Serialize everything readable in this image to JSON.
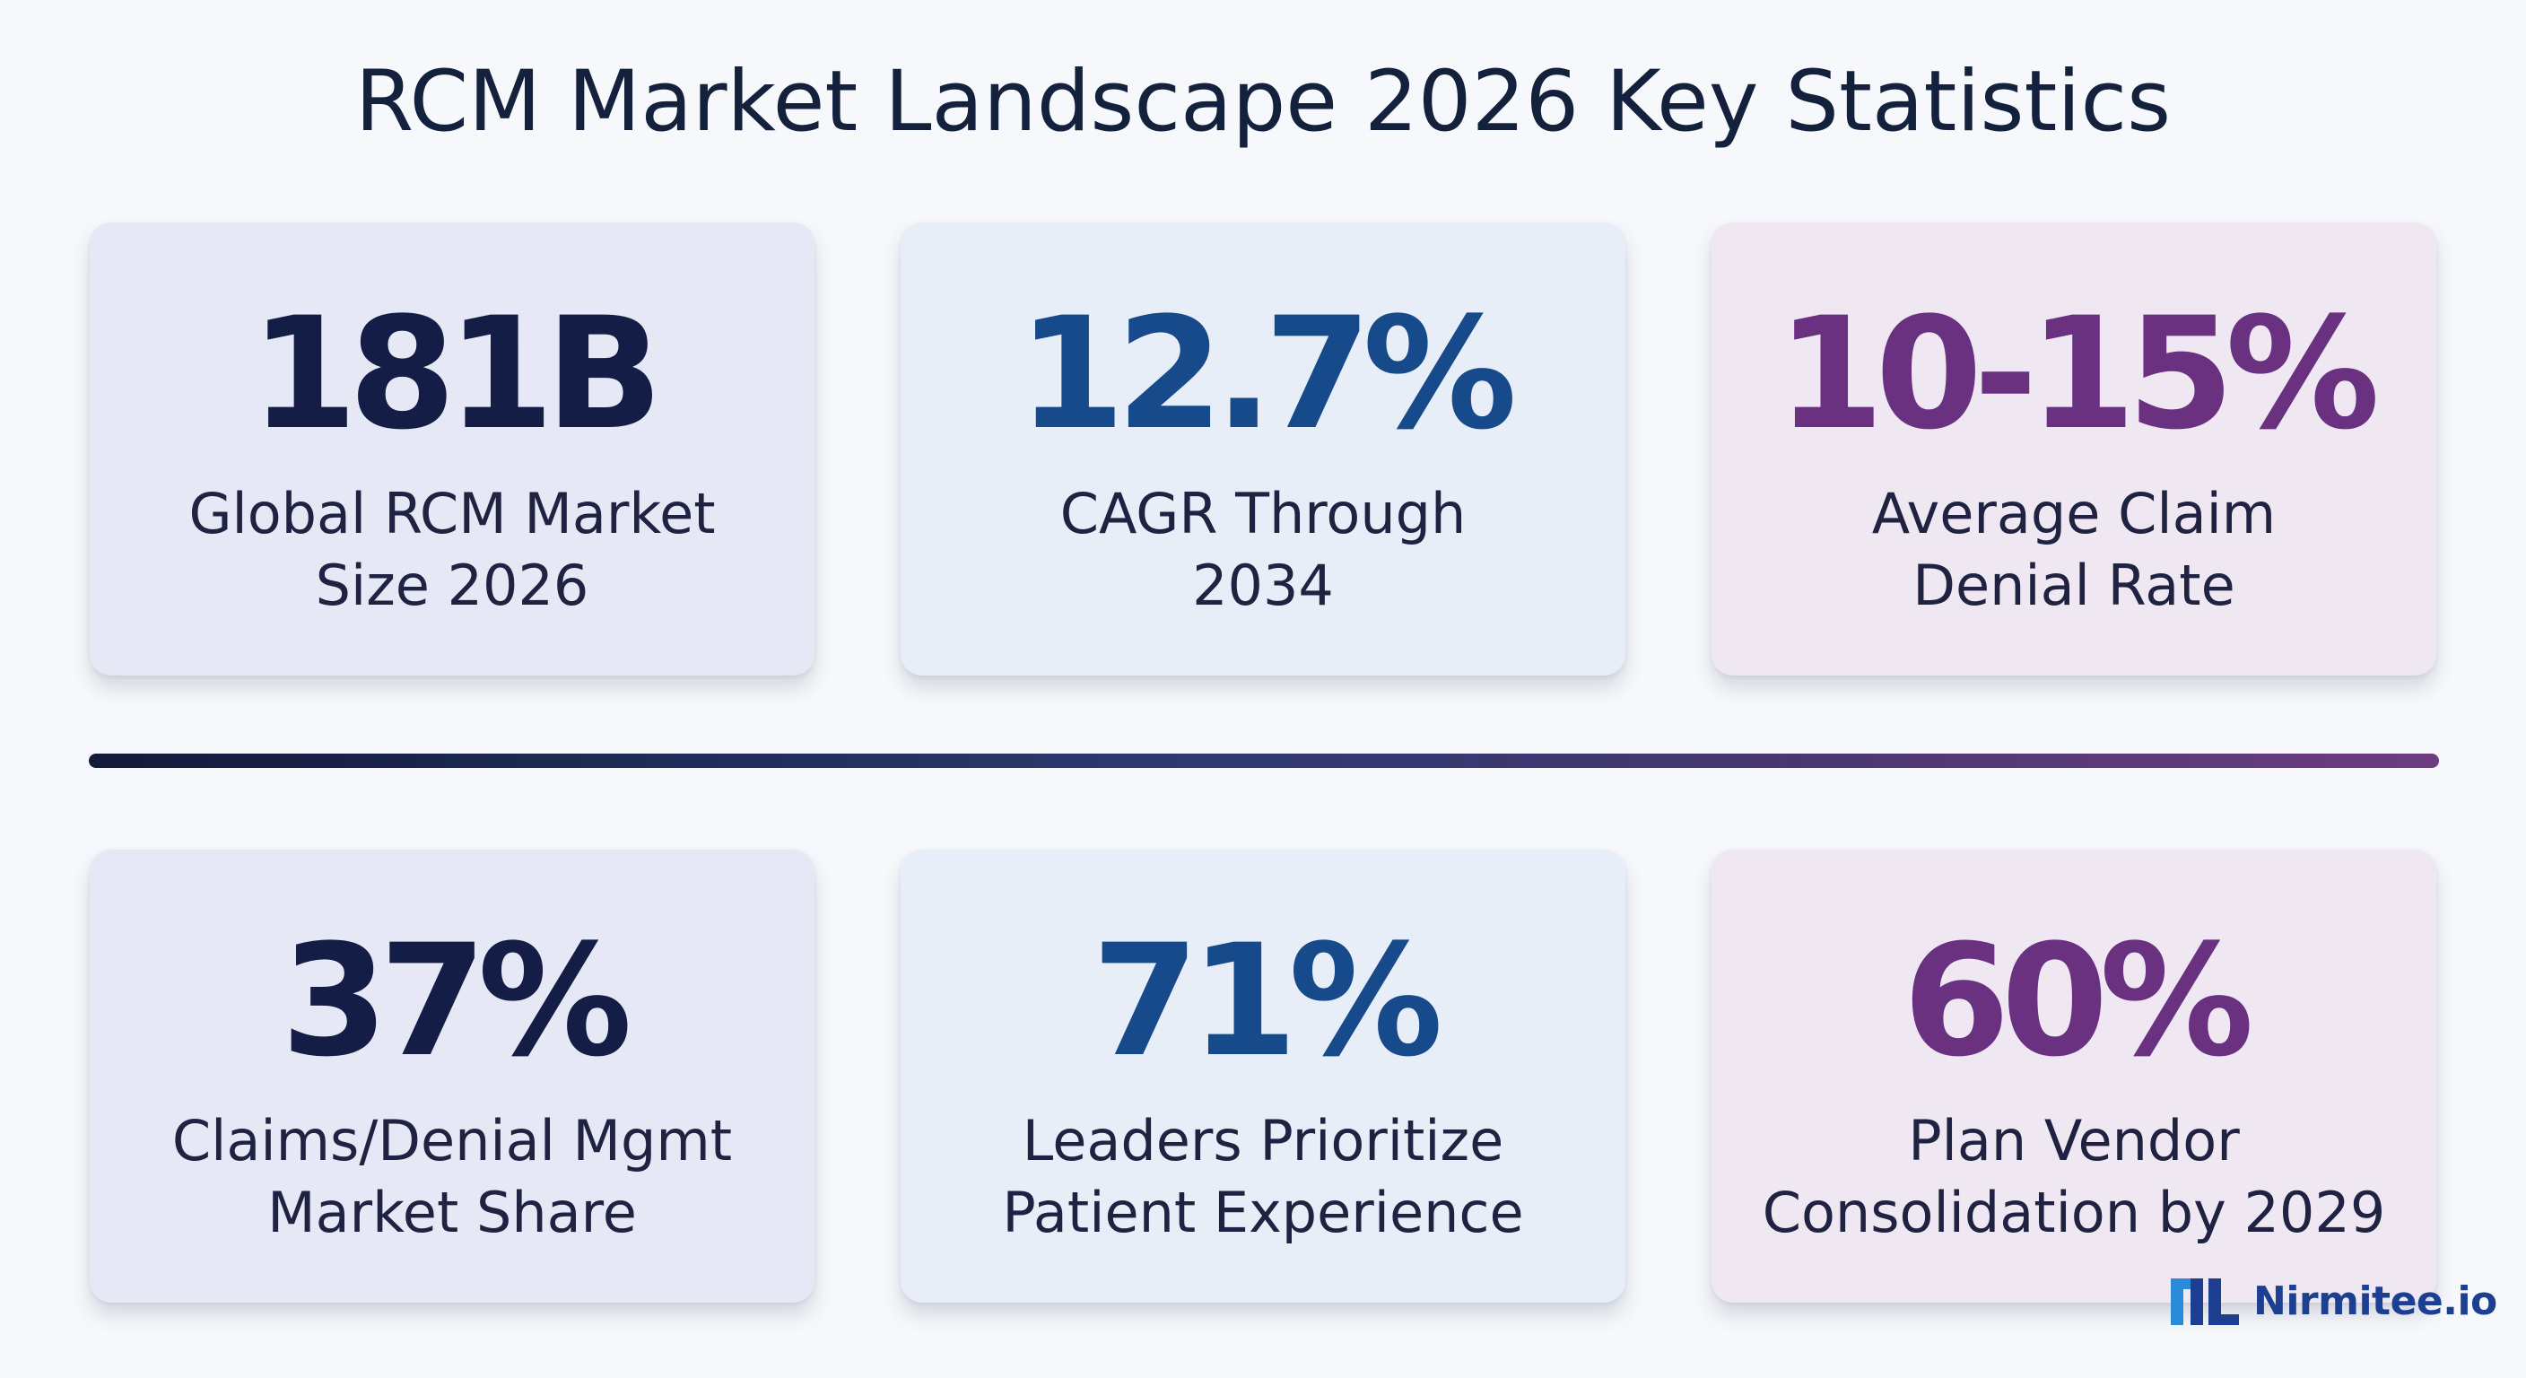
{
  "title": "RCM Market Landscape 2026 Key Statistics",
  "colors": {
    "navy": "#131d45",
    "blue": "#174a8b",
    "purple": "#6a3180",
    "brand": "#1d3f92"
  },
  "stats": [
    {
      "value": "181B",
      "label": "Global RCM Market\nSize 2026"
    },
    {
      "value": "12.7%",
      "label": "CAGR Through\n2034"
    },
    {
      "value": "10-15%",
      "label": "Average Claim\nDenial Rate"
    },
    {
      "value": "37%",
      "label": "Claims/Denial Mgmt\nMarket Share"
    },
    {
      "value": "71%",
      "label": "Leaders Prioritize\nPatient Experience"
    },
    {
      "value": "60%",
      "label": "Plan Vendor\nConsolidation by 2029"
    }
  ],
  "brand": {
    "name": "Nirmitee.io",
    "logo_icon": "nirmitee-logo-icon"
  }
}
